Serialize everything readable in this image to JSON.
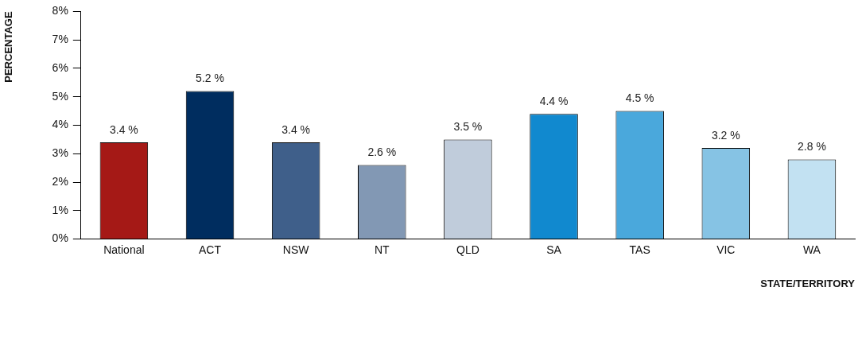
{
  "chart_data": {
    "type": "bar",
    "xlabel": "STATE/TERRITORY",
    "ylabel": "PERCENTAGE",
    "categories": [
      "National",
      "ACT",
      "NSW",
      "NT",
      "QLD",
      "SA",
      "TAS",
      "VIC",
      "WA"
    ],
    "values": [
      3.4,
      5.2,
      3.4,
      2.6,
      3.5,
      4.4,
      4.5,
      3.2,
      2.8
    ],
    "value_labels": [
      "3.4 %",
      "5.2 %",
      "3.4 %",
      "2.6 %",
      "3.5 %",
      "4.4 %",
      "4.5 %",
      "3.2 %",
      "2.8 %"
    ],
    "colors": [
      "#a51916",
      "#002d5f",
      "#3f5f8a",
      "#8298b4",
      "#c0ccdb",
      "#1189cf",
      "#4aa8dc",
      "#86c3e4",
      "#c2e1f2"
    ],
    "ylim": [
      0,
      8
    ],
    "yticks": [
      {
        "value": 0,
        "label": "0%"
      },
      {
        "value": 1,
        "label": "1%"
      },
      {
        "value": 2,
        "label": "2%"
      },
      {
        "value": 3,
        "label": "3%"
      },
      {
        "value": 4,
        "label": "4%"
      },
      {
        "value": 5,
        "label": "5%"
      },
      {
        "value": 6,
        "label": "6%"
      },
      {
        "value": 7,
        "label": "7%"
      },
      {
        "value": 8,
        "label": "8%"
      }
    ],
    "grid": false,
    "legend": false
  }
}
